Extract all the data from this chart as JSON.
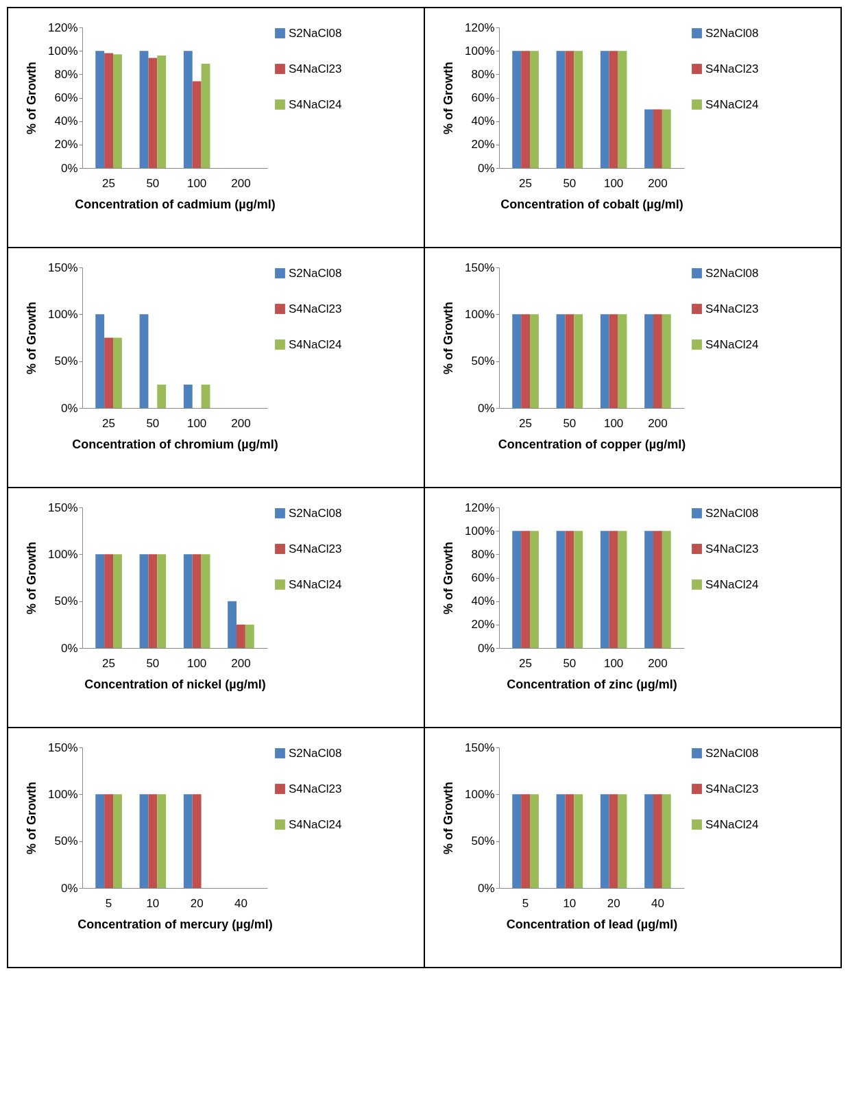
{
  "chart_data": [
    {
      "type": "bar",
      "xlabel": "Concentration of cadmium (µg/ml)",
      "ylabel": "% of Growth",
      "categories": [
        "25",
        "50",
        "100",
        "200"
      ],
      "ylim": [
        0,
        120
      ],
      "yticks": [
        {
          "value": 0,
          "label": "0%"
        },
        {
          "value": 20,
          "label": "20%"
        },
        {
          "value": 40,
          "label": "40%"
        },
        {
          "value": 60,
          "label": "60%"
        },
        {
          "value": 80,
          "label": "80%"
        },
        {
          "value": 100,
          "label": "100%"
        },
        {
          "value": 120,
          "label": "120%"
        }
      ],
      "legend": "right",
      "series": [
        {
          "name": "S2NaCl08",
          "color": "#4f81bd",
          "values": [
            100,
            100,
            100,
            0
          ]
        },
        {
          "name": "S4NaCl23",
          "color": "#c0504d",
          "values": [
            98,
            94,
            74,
            0
          ]
        },
        {
          "name": "S4NaCl24",
          "color": "#9bbb59",
          "values": [
            97,
            96,
            89,
            0
          ]
        }
      ]
    },
    {
      "type": "bar",
      "xlabel": "Concentration of cobalt (µg/ml)",
      "ylabel": "% of Growth",
      "categories": [
        "25",
        "50",
        "100",
        "200"
      ],
      "ylim": [
        0,
        120
      ],
      "yticks": [
        {
          "value": 0,
          "label": "0%"
        },
        {
          "value": 20,
          "label": "20%"
        },
        {
          "value": 40,
          "label": "40%"
        },
        {
          "value": 60,
          "label": "60%"
        },
        {
          "value": 80,
          "label": "80%"
        },
        {
          "value": 100,
          "label": "100%"
        },
        {
          "value": 120,
          "label": "120%"
        }
      ],
      "legend": "right",
      "series": [
        {
          "name": "S2NaCl08",
          "color": "#4f81bd",
          "values": [
            100,
            100,
            100,
            50
          ]
        },
        {
          "name": "S4NaCl23",
          "color": "#c0504d",
          "values": [
            100,
            100,
            100,
            50
          ]
        },
        {
          "name": "S4NaCl24",
          "color": "#9bbb59",
          "values": [
            100,
            100,
            100,
            50
          ]
        }
      ]
    },
    {
      "type": "bar",
      "xlabel": "Concentration of chromium (µg/ml)",
      "ylabel": "% of Growth",
      "categories": [
        "25",
        "50",
        "100",
        "200"
      ],
      "ylim": [
        0,
        150
      ],
      "yticks": [
        {
          "value": 0,
          "label": "0%"
        },
        {
          "value": 50,
          "label": "50%"
        },
        {
          "value": 100,
          "label": "100%"
        },
        {
          "value": 150,
          "label": "150%"
        }
      ],
      "legend": "right",
      "series": [
        {
          "name": "S2NaCl08",
          "color": "#4f81bd",
          "values": [
            100,
            100,
            25,
            0
          ]
        },
        {
          "name": "S4NaCl23",
          "color": "#c0504d",
          "values": [
            75,
            0,
            0,
            0
          ]
        },
        {
          "name": "S4NaCl24",
          "color": "#9bbb59",
          "values": [
            75,
            25,
            25,
            0
          ]
        }
      ]
    },
    {
      "type": "bar",
      "xlabel": "Concentration of copper (µg/ml)",
      "ylabel": "% of Growth",
      "categories": [
        "25",
        "50",
        "100",
        "200"
      ],
      "ylim": [
        0,
        150
      ],
      "yticks": [
        {
          "value": 0,
          "label": "0%"
        },
        {
          "value": 50,
          "label": "50%"
        },
        {
          "value": 100,
          "label": "100%"
        },
        {
          "value": 150,
          "label": "150%"
        }
      ],
      "legend": "right",
      "series": [
        {
          "name": "S2NaCl08",
          "color": "#4f81bd",
          "values": [
            100,
            100,
            100,
            100
          ]
        },
        {
          "name": "S4NaCl23",
          "color": "#c0504d",
          "values": [
            100,
            100,
            100,
            100
          ]
        },
        {
          "name": "S4NaCl24",
          "color": "#9bbb59",
          "values": [
            100,
            100,
            100,
            100
          ]
        }
      ]
    },
    {
      "type": "bar",
      "xlabel": "Concentration of nickel (µg/ml)",
      "ylabel": "% of Growth",
      "categories": [
        "25",
        "50",
        "100",
        "200"
      ],
      "ylim": [
        0,
        150
      ],
      "yticks": [
        {
          "value": 0,
          "label": "0%"
        },
        {
          "value": 50,
          "label": "50%"
        },
        {
          "value": 100,
          "label": "100%"
        },
        {
          "value": 150,
          "label": "150%"
        }
      ],
      "legend": "right",
      "series": [
        {
          "name": "S2NaCl08",
          "color": "#4f81bd",
          "values": [
            100,
            100,
            100,
            50
          ]
        },
        {
          "name": "S4NaCl23",
          "color": "#c0504d",
          "values": [
            100,
            100,
            100,
            25
          ]
        },
        {
          "name": "S4NaCl24",
          "color": "#9bbb59",
          "values": [
            100,
            100,
            100,
            25
          ]
        }
      ]
    },
    {
      "type": "bar",
      "xlabel": "Concentration of zinc (µg/ml)",
      "ylabel": "% of Growth",
      "categories": [
        "25",
        "50",
        "100",
        "200"
      ],
      "ylim": [
        0,
        120
      ],
      "yticks": [
        {
          "value": 0,
          "label": "0%"
        },
        {
          "value": 20,
          "label": "20%"
        },
        {
          "value": 40,
          "label": "40%"
        },
        {
          "value": 60,
          "label": "60%"
        },
        {
          "value": 80,
          "label": "80%"
        },
        {
          "value": 100,
          "label": "100%"
        },
        {
          "value": 120,
          "label": "120%"
        }
      ],
      "legend": "right",
      "series": [
        {
          "name": "S2NaCl08",
          "color": "#4f81bd",
          "values": [
            100,
            100,
            100,
            100
          ]
        },
        {
          "name": "S4NaCl23",
          "color": "#c0504d",
          "values": [
            100,
            100,
            100,
            100
          ]
        },
        {
          "name": "S4NaCl24",
          "color": "#9bbb59",
          "values": [
            100,
            100,
            100,
            100
          ]
        }
      ]
    },
    {
      "type": "bar",
      "xlabel": "Concentration of mercury (µg/ml)",
      "ylabel": "% of Growth",
      "categories": [
        "5",
        "10",
        "20",
        "40"
      ],
      "ylim": [
        0,
        150
      ],
      "yticks": [
        {
          "value": 0,
          "label": "0%"
        },
        {
          "value": 50,
          "label": "50%"
        },
        {
          "value": 100,
          "label": "100%"
        },
        {
          "value": 150,
          "label": "150%"
        }
      ],
      "legend": "right",
      "series": [
        {
          "name": "S2NaCl08",
          "color": "#4f81bd",
          "values": [
            100,
            100,
            100,
            0
          ]
        },
        {
          "name": "S4NaCl23",
          "color": "#c0504d",
          "values": [
            100,
            100,
            100,
            0
          ]
        },
        {
          "name": "S4NaCl24",
          "color": "#9bbb59",
          "values": [
            100,
            100,
            0,
            0
          ]
        }
      ]
    },
    {
      "type": "bar",
      "xlabel": "Concentration of lead (µg/ml)",
      "ylabel": "% of Growth",
      "categories": [
        "5",
        "10",
        "20",
        "40"
      ],
      "ylim": [
        0,
        150
      ],
      "yticks": [
        {
          "value": 0,
          "label": "0%"
        },
        {
          "value": 50,
          "label": "50%"
        },
        {
          "value": 100,
          "label": "100%"
        },
        {
          "value": 150,
          "label": "150%"
        }
      ],
      "legend": "right",
      "series": [
        {
          "name": "S2NaCl08",
          "color": "#4f81bd",
          "values": [
            100,
            100,
            100,
            100
          ]
        },
        {
          "name": "S4NaCl23",
          "color": "#c0504d",
          "values": [
            100,
            100,
            100,
            100
          ]
        },
        {
          "name": "S4NaCl24",
          "color": "#9bbb59",
          "values": [
            100,
            100,
            100,
            100
          ]
        }
      ]
    }
  ]
}
